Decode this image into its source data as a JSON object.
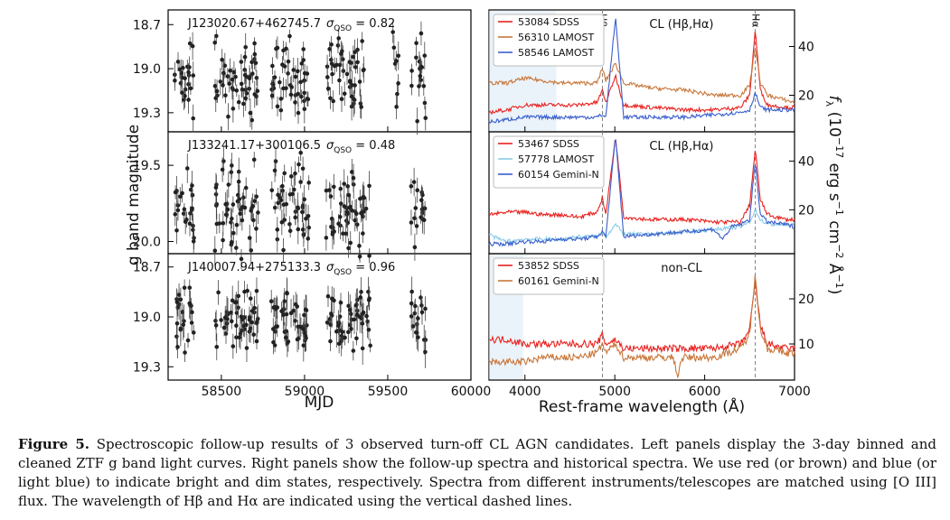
{
  "figure": {
    "left_ylabel": "g band magnitude",
    "left_xlabel": "MJD",
    "right_xlabel": "Rest-frame wavelength (Å)",
    "right_ylabel": "f_λ (10^-17 erg s^-1 cm^-2 Å^-1)",
    "hbeta_label": "Hβ",
    "halpha_label": "Hα",
    "left_xticks": [
      "58500",
      "59000",
      "59500",
      "60000"
    ],
    "right_xticks": [
      "4000",
      "5000",
      "6000",
      "7000"
    ]
  },
  "chart_data": [
    {
      "type": "scatter",
      "panel": "light-curve-1",
      "object": "J123020.67+462745.7",
      "sigma_label": "σ",
      "sigma_sub": "QSO",
      "sigma_value": "= 0.82",
      "yticks": [
        "18.7",
        "19.0",
        "19.3"
      ],
      "ylim": [
        19.43,
        18.6
      ],
      "xlim": [
        58180,
        60000
      ],
      "seasons": [
        [
          58220,
          58340
        ],
        [
          58460,
          58720
        ],
        [
          58800,
          59030
        ],
        [
          59130,
          59360
        ],
        [
          59530,
          59570
        ],
        [
          59640,
          59730
        ]
      ],
      "y_center": 19.06,
      "y_spread": 0.24
    },
    {
      "type": "scatter",
      "panel": "light-curve-2",
      "object": "J133241.17+300106.5",
      "sigma_label": "σ",
      "sigma_sub": "QSO",
      "sigma_value": "= 0.48",
      "yticks": [
        "19.5",
        "20.0"
      ],
      "ylim": [
        20.08,
        19.28
      ],
      "xlim": [
        58180,
        60000
      ],
      "seasons": [
        [
          58220,
          58340
        ],
        [
          58460,
          58720
        ],
        [
          58800,
          59030
        ],
        [
          59130,
          59400
        ],
        [
          59640,
          59730
        ]
      ],
      "y_center": 19.77,
      "y_spread": 0.3
    },
    {
      "type": "scatter",
      "panel": "light-curve-3",
      "object": "J140007.94+275133.3",
      "sigma_label": "σ",
      "sigma_sub": "QSO",
      "sigma_value": "= 0.96",
      "yticks": [
        "18.7",
        "19.0",
        "19.3"
      ],
      "ylim": [
        19.38,
        18.62
      ],
      "xlim": [
        58180,
        60000
      ],
      "seasons": [
        [
          58220,
          58340
        ],
        [
          58460,
          58720
        ],
        [
          58800,
          59030
        ],
        [
          59130,
          59400
        ],
        [
          59640,
          59730
        ]
      ],
      "y_center": 19.02,
      "y_spread": 0.18
    },
    {
      "type": "line",
      "panel": "spectrum-1",
      "title": "CL (Hβ,Hα)",
      "yticks": [
        "20",
        "40"
      ],
      "ylim": [
        5,
        55
      ],
      "xlim": [
        3600,
        7000
      ],
      "shade": [
        3600,
        4350
      ],
      "legend": [
        {
          "name": "53084 SDSS",
          "color": "#e8221f"
        },
        {
          "name": "56310 LAMOST",
          "color": "#c8763a"
        },
        {
          "name": "58546 LAMOST",
          "color": "#3a5fcd"
        }
      ],
      "series": [
        {
          "color": "#e8221f",
          "x": [
            3600,
            3800,
            4000,
            4200,
            4400,
            4600,
            4800,
            4862,
            4900,
            5007,
            5100,
            5400,
            5800,
            6100,
            6400,
            6500,
            6563,
            6620,
            6700,
            6900,
            7000
          ],
          "y": [
            13,
            14,
            16,
            16,
            16,
            16,
            17,
            22,
            17,
            28,
            16,
            15,
            14,
            14,
            15,
            20,
            47,
            22,
            16,
            15,
            15
          ]
        },
        {
          "color": "#c8763a",
          "x": [
            3600,
            3800,
            4000,
            4200,
            4400,
            4600,
            4800,
            4862,
            4900,
            5007,
            5100,
            5400,
            5800,
            6100,
            6400,
            6500,
            6563,
            6620,
            6700,
            6900,
            7000
          ],
          "y": [
            25,
            25,
            27,
            26,
            25,
            25,
            25,
            31,
            26,
            33,
            25,
            23,
            22,
            20,
            20,
            24,
            40,
            25,
            20,
            18,
            17
          ]
        },
        {
          "color": "#3a5fcd",
          "x": [
            3600,
            3800,
            4000,
            4200,
            4400,
            4600,
            4800,
            4862,
            4900,
            5007,
            5100,
            5400,
            5800,
            6100,
            6400,
            6500,
            6563,
            6620,
            6700,
            6900,
            7000
          ],
          "y": [
            9,
            10,
            11,
            11,
            11,
            11,
            11,
            12,
            11,
            52,
            11,
            11,
            11,
            12,
            13,
            14,
            21,
            15,
            14,
            14,
            14
          ]
        }
      ]
    },
    {
      "type": "line",
      "panel": "spectrum-2",
      "title": "CL (Hβ,Hα)",
      "yticks": [
        "20",
        "40"
      ],
      "ylim": [
        2,
        52
      ],
      "xlim": [
        3600,
        7000
      ],
      "shade": null,
      "legend": [
        {
          "name": "53467 SDSS",
          "color": "#e8221f"
        },
        {
          "name": "57778 LAMOST",
          "color": "#8ccbe8"
        },
        {
          "name": "60154 Gemini-N",
          "color": "#3a5fcd"
        }
      ],
      "series": [
        {
          "color": "#e8221f",
          "x": [
            3600,
            3800,
            4000,
            4200,
            4400,
            4600,
            4800,
            4862,
            4900,
            5007,
            5100,
            5400,
            5800,
            6100,
            6400,
            6500,
            6563,
            6620,
            6700,
            6900,
            7000
          ],
          "y": [
            18,
            19,
            19,
            18,
            18,
            17,
            19,
            25,
            18,
            50,
            17,
            16,
            16,
            15,
            15,
            22,
            45,
            24,
            18,
            16,
            16
          ]
        },
        {
          "color": "#8ccbe8",
          "x": [
            3600,
            3700,
            3800,
            4000,
            4200,
            4400,
            4600,
            4800,
            4862,
            4900,
            5007,
            5100,
            5400,
            5800,
            6100,
            6400,
            6500,
            6563,
            6620,
            6700,
            6900,
            7000
          ],
          "y": [
            10,
            8,
            7,
            8,
            8,
            8,
            9,
            9,
            11,
            9,
            14,
            10,
            10,
            11,
            12,
            13,
            15,
            20,
            16,
            14,
            14,
            14
          ]
        },
        {
          "color": "#3a5fcd",
          "x": [
            3600,
            3800,
            4000,
            4200,
            4400,
            4600,
            4800,
            4862,
            4900,
            5007,
            5100,
            5400,
            5800,
            6100,
            6200,
            6300,
            6400,
            6500,
            6563,
            6620,
            6700,
            6900,
            7000
          ],
          "y": [
            6,
            6,
            7,
            7,
            8,
            8,
            9,
            11,
            9,
            50,
            9,
            10,
            11,
            12,
            8,
            13,
            14,
            16,
            40,
            18,
            15,
            14,
            13
          ]
        }
      ]
    },
    {
      "type": "line",
      "panel": "spectrum-3",
      "title": "non-CL",
      "yticks": [
        "10",
        "20"
      ],
      "ylim": [
        2,
        30
      ],
      "xlim": [
        3600,
        7000
      ],
      "shade": [
        3600,
        3980
      ],
      "legend": [
        {
          "name": "53852 SDSS",
          "color": "#e8221f"
        },
        {
          "name": "60161 Gemini-N",
          "color": "#c8763a"
        }
      ],
      "series": [
        {
          "color": "#e8221f",
          "x": [
            3600,
            3800,
            4000,
            4200,
            4400,
            4600,
            4800,
            4862,
            4900,
            5007,
            5100,
            5400,
            5800,
            6100,
            6400,
            6500,
            6563,
            6620,
            6700,
            6900,
            7000
          ],
          "y": [
            11,
            11,
            10,
            10,
            10,
            10,
            10,
            12,
            10,
            11,
            9,
            9,
            9,
            9,
            10,
            13,
            24,
            14,
            10,
            9,
            9
          ]
        },
        {
          "color": "#c8763a",
          "x": [
            3600,
            3800,
            4000,
            4200,
            4400,
            4600,
            4800,
            4862,
            4900,
            5007,
            5100,
            5400,
            5650,
            5700,
            5750,
            5800,
            6100,
            6400,
            6500,
            6563,
            6620,
            6700,
            6900,
            7000
          ],
          "y": [
            6,
            6,
            6,
            7,
            7,
            7,
            8,
            10,
            8,
            10,
            7,
            7,
            7,
            3,
            7,
            7,
            7,
            9,
            12,
            26,
            13,
            9,
            8,
            8
          ]
        }
      ]
    }
  ],
  "caption": {
    "label": "Figure 5.",
    "text": " Spectroscopic follow-up results of 3 observed turn-off CL AGN candidates. Left panels display the 3-day binned and cleaned ZTF g band light curves. Right panels show the follow-up spectra and historical spectra. We use red (or brown) and blue (or light blue) to indicate bright and dim states, respectively. Spectra from different instruments/telescopes are matched using [O III] flux. The wavelength of Hβ and Hα are indicated using the vertical dashed lines."
  }
}
